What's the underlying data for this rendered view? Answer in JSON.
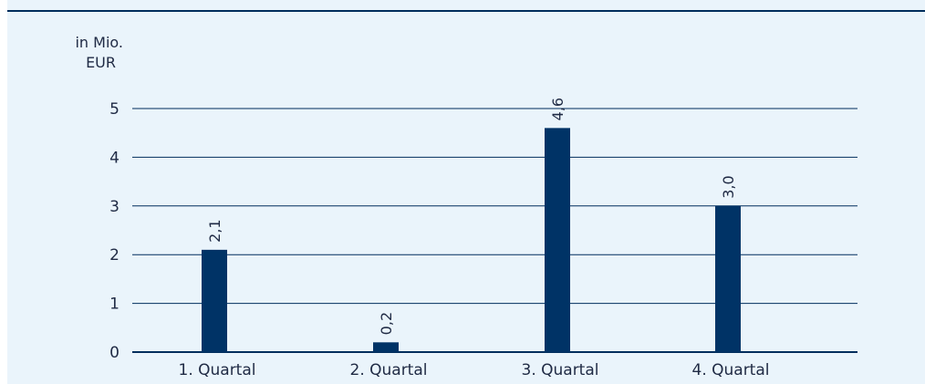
{
  "colors": {
    "background": "#eaf4fb",
    "bar": "#003366",
    "top_rule": "#002d5c",
    "grid": "#002d5c",
    "text": "#1f2a44"
  },
  "chart_data": {
    "type": "bar",
    "unit_label_line1": "in Mio.",
    "unit_label_line2": "EUR",
    "categories": [
      "1. Quartal",
      "2. Quartal",
      "3. Quartal",
      "4. Quartal"
    ],
    "values": [
      2.1,
      0.2,
      4.6,
      3.0
    ],
    "value_labels": [
      "2,1",
      "0,2",
      "4,6",
      "3,0"
    ],
    "ylim": [
      0,
      5
    ],
    "yticks": [
      0,
      1,
      2,
      3,
      4,
      5
    ],
    "grid": true,
    "legend": "none"
  }
}
